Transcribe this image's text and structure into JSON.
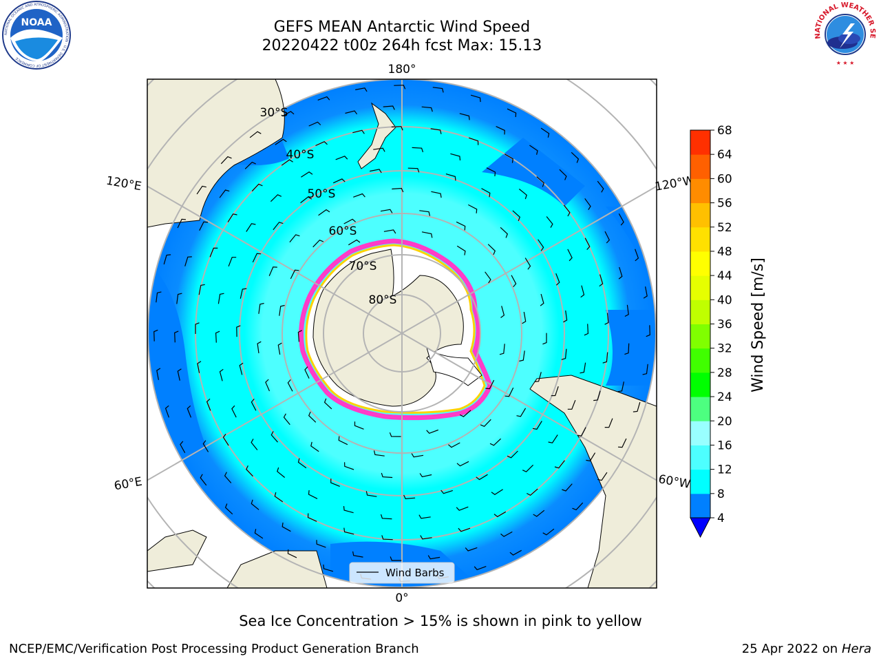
{
  "title": {
    "line1": "GEFS MEAN Antarctic Wind Speed",
    "line2": "20220422 t00z 264h fcst   Max: 15.13"
  },
  "logos": {
    "noaa_text": "NOAA",
    "noaa_ring": "NATIONAL OCEANIC AND ATMOSPHERIC ADMINISTRATION · U.S. DEPARTMENT OF COMMERCE",
    "nws_ring": "NATIONAL WEATHER SERVICE"
  },
  "map": {
    "projection": "south-polar-stereographic",
    "longitude_labels": {
      "top": "180°",
      "upper_left": "120°E",
      "upper_right": "120°W",
      "lower_left": "60°E",
      "lower_right": "60°W",
      "bottom": "0°"
    },
    "latitude_labels": [
      "30°S",
      "40°S",
      "50°S",
      "60°S",
      "70°S",
      "80°S"
    ],
    "legend": {
      "label": "Wind Barbs",
      "placement": "bottom-center"
    },
    "colors": {
      "land": "#efedda",
      "ocean_low": "#0080ff",
      "ocean_mid": "#00ffff",
      "ocean_high": "#4dffff",
      "ice_edge_pink": "#ff3cc8",
      "ice_edge_yellow": "#ffd200"
    }
  },
  "colorbar": {
    "label": "Wind Speed [m/s]",
    "ticks": [
      "4",
      "8",
      "12",
      "16",
      "20",
      "24",
      "28",
      "32",
      "36",
      "40",
      "44",
      "48",
      "52",
      "56",
      "60",
      "64",
      "68"
    ],
    "colors": [
      "#0080ff",
      "#00ffff",
      "#4dffff",
      "#99ffff",
      "#4dff80",
      "#00ff00",
      "#40ff00",
      "#80ff00",
      "#c0ff00",
      "#e6ff00",
      "#ffff00",
      "#ffe000",
      "#ffc000",
      "#ff8c00",
      "#ff6000",
      "#ff3000",
      "#ff0000"
    ],
    "under_color": "#0000ff"
  },
  "caption": "Sea Ice Concentration > 15% is shown in pink to yellow",
  "footer": {
    "left": "NCEP/EMC/Verification Post Processing Product Generation Branch",
    "right_prefix": "25 Apr 2022 on ",
    "right_host": "Hera"
  }
}
